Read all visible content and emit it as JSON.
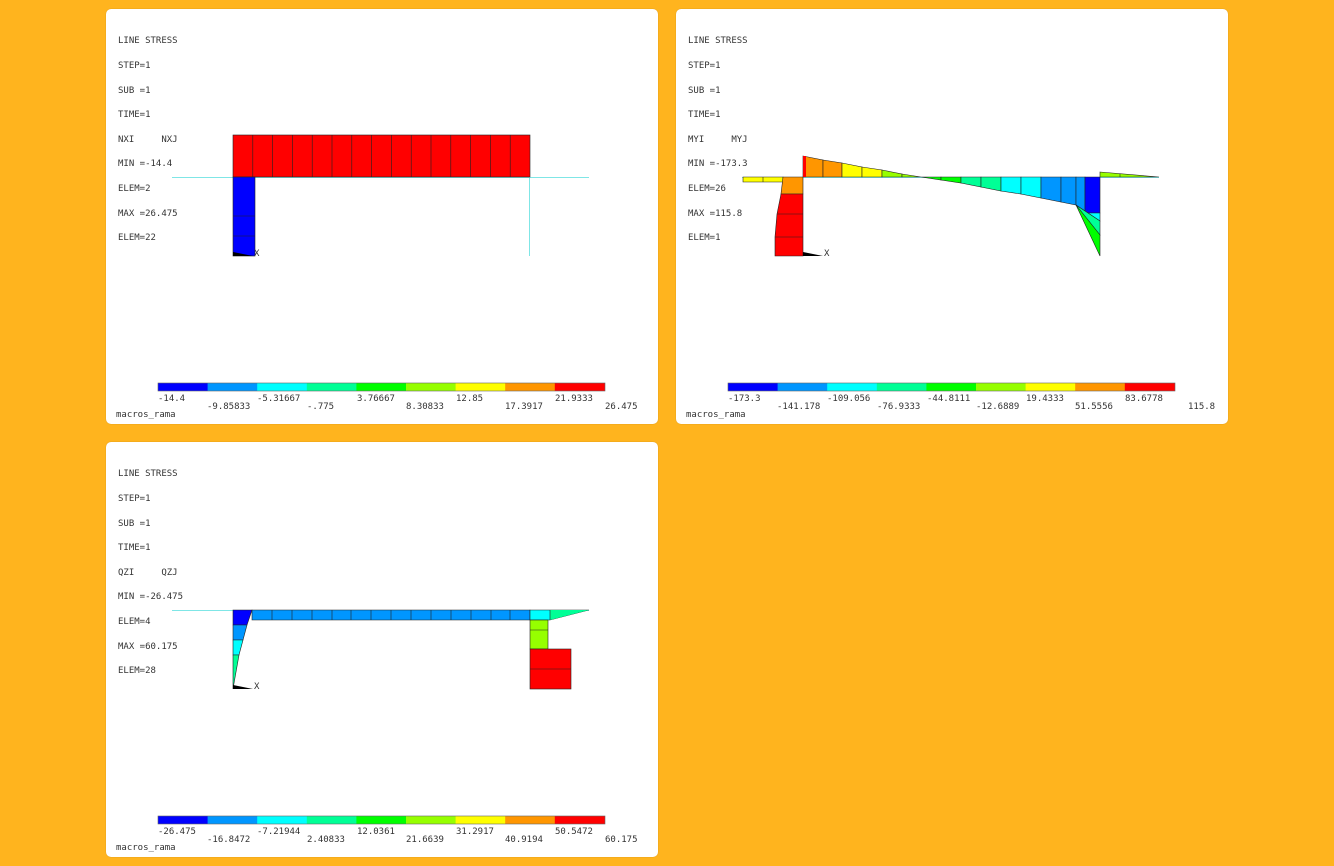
{
  "panels": [
    {
      "id": "nx",
      "info": {
        "title": "LINE STRESS",
        "step": "STEP=1",
        "sub": "SUB =1",
        "time": "TIME=1",
        "items": "NXI     NXJ",
        "min": "MIN =-14.4",
        "min_elem": "ELEM=2",
        "max": "MAX =26.475",
        "max_elem": "ELEM=22"
      },
      "axis_label": "X",
      "legend": {
        "colors": [
          "#0000FF",
          "#0096FF",
          "#00FFFF",
          "#00FF96",
          "#00FF00",
          "#96FF00",
          "#FFFF00",
          "#FF9600",
          "#FF0000"
        ],
        "values": [
          "-14.4",
          "-9.85833",
          "-5.31667",
          "-.775",
          "3.76667",
          "8.30833",
          "12.85",
          "17.3917",
          "21.9333",
          "26.475"
        ]
      },
      "caption": "macros_rama"
    },
    {
      "id": "my",
      "info": {
        "title": "LINE STRESS",
        "step": "STEP=1",
        "sub": "SUB =1",
        "time": "TIME=1",
        "items": "MYI     MYJ",
        "min": "MIN =-173.3",
        "min_elem": "ELEM=26",
        "max": "MAX =115.8",
        "max_elem": "ELEM=1"
      },
      "axis_label": "X",
      "legend": {
        "colors": [
          "#0000FF",
          "#0096FF",
          "#00FFFF",
          "#00FF96",
          "#00FF00",
          "#96FF00",
          "#FFFF00",
          "#FF9600",
          "#FF0000"
        ],
        "values": [
          "-173.3",
          "-141.178",
          "-109.056",
          "-76.9333",
          "-44.8111",
          "-12.6889",
          "19.4333",
          "51.5556",
          "83.6778",
          "115.8"
        ]
      },
      "caption": "macros_rama"
    },
    {
      "id": "qz",
      "info": {
        "title": "LINE STRESS",
        "step": "STEP=1",
        "sub": "SUB =1",
        "time": "TIME=1",
        "items": "QZI     QZJ",
        "min": "MIN =-26.475",
        "min_elem": "ELEM=4",
        "max": "MAX =60.175",
        "max_elem": "ELEM=28"
      },
      "axis_label": "X",
      "legend": {
        "colors": [
          "#0000FF",
          "#0096FF",
          "#00FFFF",
          "#00FF96",
          "#00FF00",
          "#96FF00",
          "#FFFF00",
          "#FF9600",
          "#FF0000"
        ],
        "values": [
          "-26.475",
          "-16.8472",
          "-7.21944",
          "2.40833",
          "12.0361",
          "21.6639",
          "31.2917",
          "40.9194",
          "50.5472",
          "60.175"
        ]
      },
      "caption": "macros_rama"
    }
  ]
}
